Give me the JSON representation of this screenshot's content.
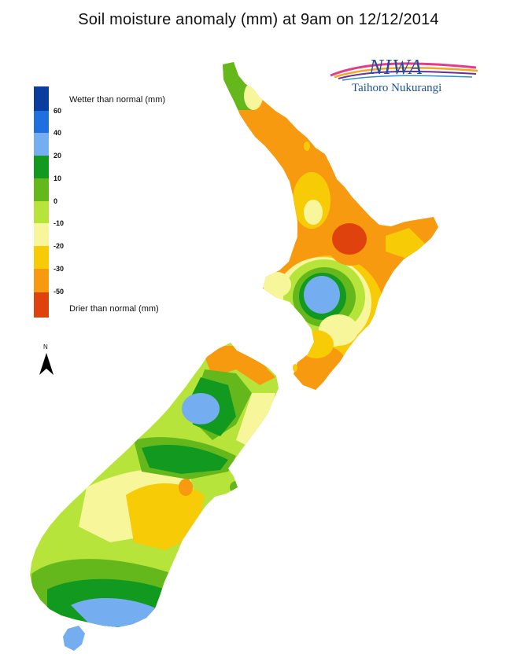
{
  "title": "Soil moisture anomaly (mm) at 9am on 12/12/2014",
  "logo": {
    "brand": "NIWA",
    "subtitle": "Taihoro Nukurangi"
  },
  "legend": {
    "wetter_label": "Wetter than normal (mm)",
    "drier_label": "Drier than normal (mm)",
    "classes": [
      {
        "color": "#0a3d9e"
      },
      {
        "color": "#1f6fe0"
      },
      {
        "color": "#74aef0"
      },
      {
        "color": "#119a1f"
      },
      {
        "color": "#64b81c"
      },
      {
        "color": "#b7e43b"
      },
      {
        "color": "#f7f69a"
      },
      {
        "color": "#f7cb05"
      },
      {
        "color": "#f79a10"
      },
      {
        "color": "#e0420d"
      }
    ],
    "ticks": [
      "60",
      "40",
      "20",
      "10",
      "0",
      "-10",
      "-20",
      "-30",
      "-50"
    ]
  },
  "north_label": "N",
  "colors": {
    "very_wet": "#0a3d9e",
    "wet_60": "#1f6fe0",
    "wet_40": "#74aef0",
    "wet_20": "#119a1f",
    "wet_10": "#64b81c",
    "near_normal": "#b7e43b",
    "dry_10": "#f7f69a",
    "dry_20": "#f7cb05",
    "dry_30": "#f79a10",
    "very_dry": "#e0420d"
  }
}
